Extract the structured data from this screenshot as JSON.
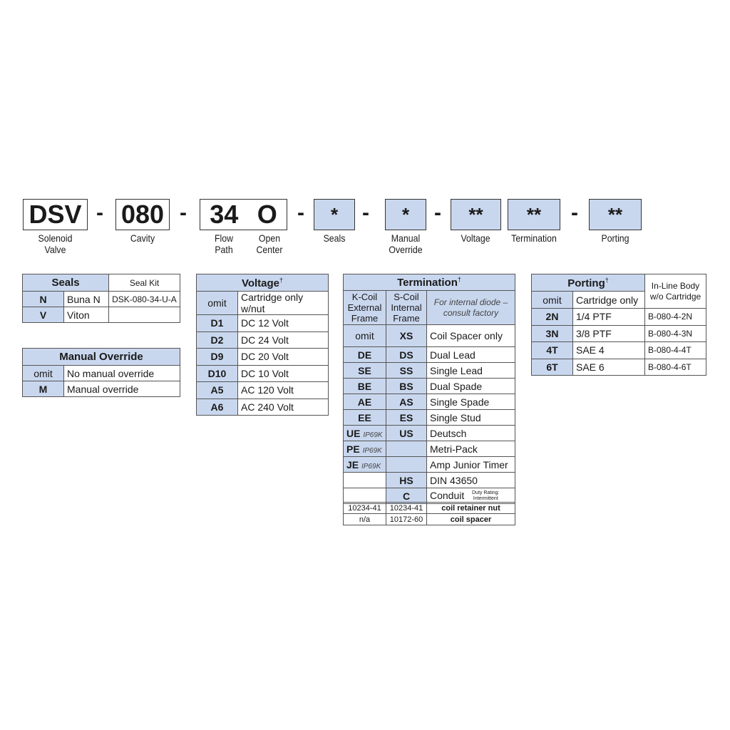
{
  "code": {
    "segments": [
      {
        "code": "DSV",
        "label": [
          "Solenoid",
          "Valve"
        ]
      },
      {
        "code": "080",
        "label": [
          "Cavity"
        ]
      },
      {
        "code": "34",
        "label": [
          "Flow",
          "Path"
        ]
      },
      {
        "code": "O",
        "label": [
          "Open",
          "Center"
        ]
      },
      {
        "code": "*",
        "label": [
          "Seals"
        ]
      },
      {
        "code": "*",
        "label": [
          "Manual",
          "Override"
        ]
      },
      {
        "code": "**",
        "label": [
          "Voltage"
        ]
      },
      {
        "code": "**",
        "label": [
          "Termination"
        ]
      },
      {
        "code": "**",
        "label": [
          "Porting"
        ]
      }
    ],
    "dash": "-"
  },
  "seals": {
    "title": "Seals",
    "kit_header": "Seal Kit",
    "rows": [
      [
        "N",
        "Buna N",
        "DSK-080-34-U-A"
      ],
      [
        "V",
        "Viton",
        ""
      ]
    ]
  },
  "manual_override": {
    "title": "Manual Override",
    "rows": [
      [
        "omit",
        "No manual override"
      ],
      [
        "M",
        "Manual override"
      ]
    ]
  },
  "voltage": {
    "title": "Voltage",
    "dagger": "†",
    "rows": [
      [
        "omit",
        "Cartridge only w/nut"
      ],
      [
        "D1",
        "DC  12 Volt"
      ],
      [
        "D2",
        "DC  24 Volt"
      ],
      [
        "D9",
        "DC  20 Volt"
      ],
      [
        "D10",
        "DC  10 Volt"
      ],
      [
        "A5",
        "AC 120 Volt"
      ],
      [
        "A6",
        "AC 240 Volt"
      ]
    ]
  },
  "termination": {
    "title": "Termination",
    "dagger": "†",
    "col1": "K-Coil External Frame",
    "col2": "S-Coil Internal Frame",
    "col3": "For internal diode – consult factory",
    "ip": "IP69K",
    "rows": [
      [
        "omit",
        "XS",
        "Coil Spacer only"
      ],
      [
        "DE",
        "DS",
        "Dual Lead"
      ],
      [
        "SE",
        "SS",
        "Single Lead"
      ],
      [
        "BE",
        "BS",
        "Dual Spade"
      ],
      [
        "AE",
        "AS",
        "Single Spade"
      ],
      [
        "EE",
        "ES",
        "Single Stud"
      ],
      [
        "UE",
        "US",
        "Deutsch"
      ],
      [
        "PE",
        "",
        "Metri-Pack"
      ],
      [
        "JE",
        "",
        "Amp Junior Timer"
      ],
      [
        "",
        "HS",
        "DIN 43650"
      ],
      [
        "",
        "C",
        "Conduit"
      ]
    ],
    "duty_note": "Duty Rating: Intermittent",
    "parts": [
      [
        "10234-41",
        "10234-41",
        "coil retainer nut"
      ],
      [
        "n/a",
        "10172-60",
        "coil spacer"
      ]
    ]
  },
  "porting": {
    "title": "Porting",
    "dagger": "†",
    "inline_header": "In-Line Body w/o Cartridge",
    "omit_row": [
      "omit",
      "Cartridge only"
    ],
    "rows": [
      [
        "2N",
        "1/4 PTF",
        "B-080-4-2N"
      ],
      [
        "3N",
        "3/8 PTF",
        "B-080-4-3N"
      ],
      [
        "4T",
        "SAE 4",
        "B-080-4-4T"
      ],
      [
        "6T",
        "SAE 6",
        "B-080-4-6T"
      ]
    ]
  },
  "colors": {
    "highlight": "#c9d7ee",
    "border": "#555555"
  }
}
